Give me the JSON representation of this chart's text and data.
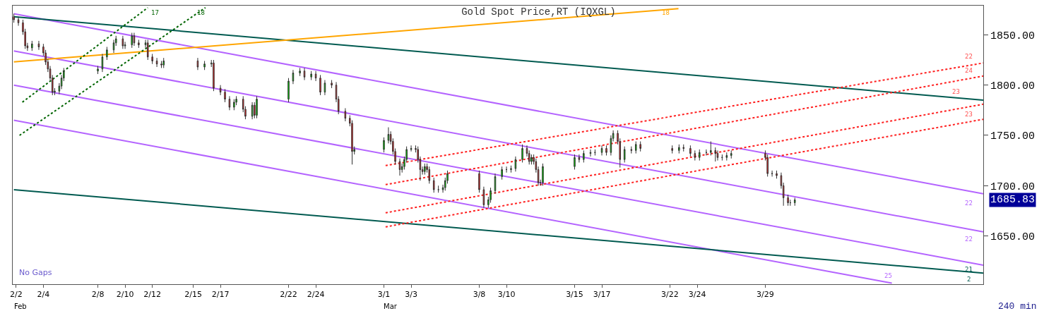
{
  "chart_data": {
    "type": "candlestick",
    "title": "Gold Spot Price,RT (IQXGL)",
    "x": [
      "--02-01T20:00",
      "--02-02T04:00",
      "--02-02T12:00",
      "--02-02T16:00",
      "--02-02T20:00",
      "--02-03T04:00",
      "--02-03T16:00",
      "--02-04T00:00",
      "--02-04T04:00",
      "--02-04T08:00",
      "--02-04T12:00",
      "--02-04T16:00",
      "--02-04T20:00",
      "--02-05T04:00",
      "--02-05T08:00",
      "--02-05T12:00",
      "--02-08T00:00",
      "--02-08T08:00",
      "--02-08T16:00",
      "--02-09T04:00",
      "--02-09T08:00",
      "--02-09T20:00",
      "--02-10T00:00",
      "--02-10T12:00",
      "--02-10T16:00",
      "--02-11T00:00",
      "--02-11T12:00",
      "--02-11T16:00",
      "--02-12T00:00",
      "--02-12T08:00",
      "--02-12T16:00",
      "--02-12T20:00",
      "--02-15T08:00",
      "--02-15T20:00",
      "--02-16T08:00",
      "--02-16T12:00",
      "--02-17T00:00",
      "--02-17T08:00",
      "--02-17T16:00",
      "--02-18T00:00",
      "--02-18T04:00",
      "--02-18T16:00",
      "--02-18T20:00",
      "--02-19T08:00",
      "--02-19T12:00",
      "--02-19T16:00",
      "--02-22T00:00",
      "--02-22T08:00",
      "--02-22T20:00",
      "--02-23T04:00",
      "--02-23T16:00",
      "--02-24T00:00",
      "--02-24T08:00",
      "--02-24T16:00",
      "--02-25T04:00",
      "--02-25T12:00",
      "--02-25T16:00",
      "--02-26T04:00",
      "--02-26T12:00",
      "--02-26T16:00",
      "--02-26T20:00",
      "--03-01T00:00",
      "--03-01T08:00",
      "--03-01T12:00",
      "--03-01T16:00",
      "--03-01T20:00",
      "--03-02T04:00",
      "--03-02T08:00",
      "--03-02T12:00",
      "--03-02T16:00",
      "--03-03T00:00",
      "--03-03T08:00",
      "--03-03T12:00",
      "--03-03T16:00",
      "--03-03T20:00",
      "--03-04T00:00",
      "--03-04T04:00",
      "--03-04T08:00",
      "--03-04T16:00",
      "--03-05T00:00",
      "--03-05T08:00",
      "--03-05T12:00",
      "--03-05T16:00",
      "--03-08T00:00",
      "--03-08T08:00",
      "--03-08T16:00",
      "--03-08T20:00",
      "--03-09T04:00",
      "--03-09T16:00",
      "--03-10T00:00",
      "--03-10T08:00",
      "--03-10T16:00",
      "--03-11T04:00",
      "--03-11T12:00",
      "--03-11T16:00",
      "--03-11T20:00",
      "--03-12T00:00",
      "--03-12T04:00",
      "--03-12T08:00",
      "--03-12T12:00",
      "--03-12T16:00",
      "--03-15T00:00",
      "--03-15T08:00",
      "--03-15T16:00",
      "--03-16T04:00",
      "--03-16T12:00",
      "--03-17T00:00",
      "--03-17T08:00",
      "--03-17T16:00",
      "--03-17T20:00",
      "--03-18T04:00",
      "--03-18T08:00",
      "--03-18T16:00",
      "--03-19T04:00",
      "--03-19T12:00",
      "--03-19T20:00",
      "--03-22T04:00",
      "--03-22T16:00",
      "--03-23T00:00",
      "--03-23T12:00",
      "--03-23T20:00",
      "--03-24T04:00",
      "--03-24T16:00",
      "--03-25T00:00",
      "--03-25T08:00",
      "--03-25T12:00",
      "--03-25T20:00",
      "--03-26T04:00",
      "--03-26T12:00",
      "--03-29T00:00",
      "--03-29T04:00",
      "--03-29T12:00",
      "--03-29T20:00",
      "--03-30T04:00",
      "--03-30T08:00",
      "--03-30T16:00",
      "--03-30T20:00",
      "--03-31T04:00"
    ],
    "ohlc": [
      [
        1868,
        1871,
        1862,
        1865
      ],
      [
        1865,
        1868,
        1859,
        1862
      ],
      [
        1862,
        1865,
        1850,
        1853
      ],
      [
        1853,
        1856,
        1836,
        1839
      ],
      [
        1839,
        1842,
        1834,
        1837
      ],
      [
        1837,
        1844,
        1834,
        1841
      ],
      [
        1841,
        1844,
        1835,
        1838
      ],
      [
        1838,
        1841,
        1829,
        1832
      ],
      [
        1832,
        1835,
        1820,
        1823
      ],
      [
        1823,
        1826,
        1813,
        1816
      ],
      [
        1816,
        1819,
        1804,
        1807
      ],
      [
        1807,
        1810,
        1790,
        1793
      ],
      [
        1793,
        1797,
        1790,
        1794
      ],
      [
        1794,
        1802,
        1791,
        1799
      ],
      [
        1799,
        1810,
        1796,
        1807
      ],
      [
        1807,
        1817,
        1804,
        1814
      ],
      [
        1814,
        1819,
        1811,
        1816
      ],
      [
        1816,
        1831,
        1813,
        1828
      ],
      [
        1828,
        1838,
        1825,
        1835
      ],
      [
        1835,
        1845,
        1832,
        1842
      ],
      [
        1842,
        1849,
        1839,
        1846
      ],
      [
        1846,
        1849,
        1836,
        1839
      ],
      [
        1839,
        1843,
        1836,
        1840
      ],
      [
        1840,
        1852,
        1837,
        1849
      ],
      [
        1849,
        1852,
        1839,
        1842
      ],
      [
        1842,
        1845,
        1837,
        1840
      ],
      [
        1840,
        1845,
        1837,
        1842
      ],
      [
        1842,
        1845,
        1825,
        1828
      ],
      [
        1828,
        1831,
        1821,
        1824
      ],
      [
        1824,
        1827,
        1818,
        1821
      ],
      [
        1821,
        1824,
        1817,
        1820
      ],
      [
        1820,
        1827,
        1817,
        1824
      ],
      [
        1824,
        1827,
        1815,
        1818
      ],
      [
        1818,
        1824,
        1815,
        1821
      ],
      [
        1821,
        1825,
        1818,
        1822
      ],
      [
        1822,
        1825,
        1794,
        1797
      ],
      [
        1797,
        1800,
        1790,
        1793
      ],
      [
        1793,
        1796,
        1783,
        1786
      ],
      [
        1786,
        1789,
        1775,
        1778
      ],
      [
        1778,
        1786,
        1775,
        1783
      ],
      [
        1783,
        1789,
        1780,
        1786
      ],
      [
        1786,
        1789,
        1773,
        1776
      ],
      [
        1776,
        1779,
        1766,
        1769
      ],
      [
        1769,
        1783,
        1766,
        1780
      ],
      [
        1780,
        1783,
        1767,
        1770
      ],
      [
        1770,
        1789,
        1767,
        1786
      ],
      [
        1786,
        1807,
        1783,
        1804
      ],
      [
        1804,
        1815,
        1801,
        1812
      ],
      [
        1812,
        1817,
        1809,
        1814
      ],
      [
        1814,
        1817,
        1805,
        1808
      ],
      [
        1808,
        1814,
        1805,
        1811
      ],
      [
        1811,
        1814,
        1804,
        1807
      ],
      [
        1807,
        1810,
        1790,
        1793
      ],
      [
        1793,
        1805,
        1790,
        1802
      ],
      [
        1802,
        1805,
        1797,
        1800
      ],
      [
        1800,
        1803,
        1783,
        1786
      ],
      [
        1786,
        1789,
        1771,
        1774
      ],
      [
        1774,
        1777,
        1764,
        1767
      ],
      [
        1767,
        1770,
        1759,
        1762
      ],
      [
        1762,
        1765,
        1721,
        1734
      ],
      [
        1734,
        1739,
        1731,
        1736
      ],
      [
        1736,
        1748,
        1733,
        1745
      ],
      [
        1745,
        1758,
        1742,
        1751
      ],
      [
        1751,
        1754,
        1741,
        1744
      ],
      [
        1744,
        1747,
        1731,
        1734
      ],
      [
        1734,
        1737,
        1721,
        1724
      ],
      [
        1724,
        1727,
        1710,
        1716
      ],
      [
        1716,
        1722,
        1713,
        1719
      ],
      [
        1719,
        1729,
        1716,
        1726
      ],
      [
        1726,
        1739,
        1723,
        1736
      ],
      [
        1736,
        1740,
        1734,
        1737
      ],
      [
        1737,
        1740,
        1733,
        1736
      ],
      [
        1736,
        1739,
        1723,
        1726
      ],
      [
        1726,
        1729,
        1705,
        1716
      ],
      [
        1716,
        1719,
        1711,
        1714
      ],
      [
        1714,
        1722,
        1711,
        1719
      ],
      [
        1719,
        1722,
        1713,
        1716
      ],
      [
        1716,
        1719,
        1702,
        1705
      ],
      [
        1705,
        1708,
        1693,
        1696
      ],
      [
        1696,
        1700,
        1693,
        1696
      ],
      [
        1696,
        1701,
        1693,
        1698
      ],
      [
        1698,
        1708,
        1695,
        1705
      ],
      [
        1705,
        1715,
        1702,
        1712
      ],
      [
        1712,
        1715,
        1693,
        1696
      ],
      [
        1696,
        1699,
        1678,
        1681
      ],
      [
        1681,
        1689,
        1678,
        1686
      ],
      [
        1686,
        1698,
        1683,
        1695
      ],
      [
        1695,
        1712,
        1692,
        1709
      ],
      [
        1709,
        1719,
        1706,
        1716
      ],
      [
        1716,
        1719,
        1713,
        1716
      ],
      [
        1716,
        1720,
        1713,
        1717
      ],
      [
        1717,
        1729,
        1714,
        1726
      ],
      [
        1726,
        1741,
        1723,
        1737
      ],
      [
        1737,
        1740,
        1729,
        1732
      ],
      [
        1732,
        1735,
        1721,
        1724
      ],
      [
        1724,
        1731,
        1721,
        1728
      ],
      [
        1728,
        1731,
        1721,
        1724
      ],
      [
        1724,
        1727,
        1713,
        1716
      ],
      [
        1716,
        1719,
        1700,
        1703
      ],
      [
        1703,
        1706,
        1700,
        1703
      ],
      [
        1703,
        1722,
        1700,
        1719
      ],
      [
        1719,
        1731,
        1716,
        1728
      ],
      [
        1728,
        1731,
        1723,
        1726
      ],
      [
        1726,
        1735,
        1723,
        1732
      ],
      [
        1732,
        1736,
        1729,
        1733
      ],
      [
        1733,
        1736,
        1730,
        1733
      ],
      [
        1733,
        1740,
        1730,
        1737
      ],
      [
        1737,
        1740,
        1730,
        1733
      ],
      [
        1733,
        1750,
        1730,
        1747
      ],
      [
        1747,
        1755,
        1744,
        1752
      ],
      [
        1752,
        1755,
        1741,
        1744
      ],
      [
        1744,
        1747,
        1718,
        1726
      ],
      [
        1726,
        1739,
        1723,
        1736
      ],
      [
        1736,
        1739,
        1732,
        1735
      ],
      [
        1735,
        1744,
        1732,
        1741
      ],
      [
        1741,
        1744,
        1734,
        1737
      ],
      [
        1737,
        1740,
        1732,
        1735
      ],
      [
        1735,
        1741,
        1732,
        1738
      ],
      [
        1738,
        1741,
        1734,
        1737
      ],
      [
        1737,
        1740,
        1729,
        1732
      ],
      [
        1732,
        1735,
        1725,
        1728
      ],
      [
        1728,
        1736,
        1725,
        1733
      ],
      [
        1733,
        1736,
        1730,
        1733
      ],
      [
        1733,
        1744,
        1730,
        1735
      ],
      [
        1735,
        1738,
        1724,
        1732
      ],
      [
        1732,
        1735,
        1725,
        1728
      ],
      [
        1728,
        1731,
        1725,
        1728
      ],
      [
        1728,
        1733,
        1725,
        1730
      ],
      [
        1730,
        1735,
        1727,
        1732
      ],
      [
        1732,
        1735,
        1725,
        1728
      ],
      [
        1728,
        1731,
        1709,
        1712
      ],
      [
        1712,
        1715,
        1709,
        1712
      ],
      [
        1712,
        1715,
        1707,
        1710
      ],
      [
        1710,
        1713,
        1697,
        1700
      ],
      [
        1700,
        1703,
        1680,
        1688
      ],
      [
        1688,
        1691,
        1680,
        1683
      ],
      [
        1683,
        1686,
        1680,
        1683
      ],
      [
        1683,
        1688,
        1680,
        1685.83
      ]
    ],
    "series": [
      {
        "type": "line",
        "x": [
          "--02-01T20:00",
          "--04-14T00:00"
        ],
        "values": [
          1871,
          1692
        ],
        "color": "#b464ff",
        "line_style": "solid"
      },
      {
        "type": "line",
        "x": [
          "--02-01T20:00",
          "--04-14T00:00"
        ],
        "values": [
          1834,
          1654
        ],
        "color": "#b464ff",
        "line_style": "solid"
      },
      {
        "type": "line",
        "x": [
          "--02-01T20:00",
          "--04-14T00:00"
        ],
        "values": [
          1800,
          1621
        ],
        "color": "#b464ff",
        "line_style": "solid"
      },
      {
        "type": "line",
        "x": [
          "--02-01T20:00",
          "--04-07T07:00"
        ],
        "values": [
          1765,
          1603
        ],
        "color": "#b464ff",
        "line_style": "solid"
      },
      {
        "type": "line",
        "x": [
          "--02-01T20:00",
          "--04-14T00:00"
        ],
        "values": [
          1868,
          1785
        ],
        "color": "#005a50",
        "line_style": "solid"
      },
      {
        "type": "line",
        "x": [
          "--02-01T20:00",
          "--04-14T00:00"
        ],
        "values": [
          1696,
          1613
        ],
        "color": "#005a50",
        "line_style": "solid"
      },
      {
        "type": "line",
        "x": [
          "--02-01T20:00",
          "--03-22T15:00"
        ],
        "values": [
          1823,
          1876
        ],
        "color": "#ffa500",
        "line_style": "solid"
      },
      {
        "type": "line",
        "x": [
          "--02-02T11:00",
          "--02-11T16:00"
        ],
        "values": [
          1783,
          1877
        ],
        "color": "#006400",
        "line_style": "dotted"
      },
      {
        "type": "line",
        "x": [
          "--02-02T06:00",
          "--02-15T21:30"
        ],
        "values": [
          1750,
          1877
        ],
        "color": "#006400",
        "line_style": "dotted"
      },
      {
        "type": "line",
        "x": [
          "--03-01T03:00",
          "--04-14T00:00"
        ],
        "values": [
          1720,
          1822
        ],
        "color": "#ff2020",
        "line_style": "dotted"
      },
      {
        "type": "line",
        "x": [
          "--03-01T03:00",
          "--04-14T00:00"
        ],
        "values": [
          1701,
          1809
        ],
        "color": "#ff2020",
        "line_style": "dotted"
      },
      {
        "type": "line",
        "x": [
          "--03-01T03:00",
          "--04-14T00:00"
        ],
        "values": [
          1673,
          1781
        ],
        "color": "#ff2020",
        "line_style": "dotted"
      },
      {
        "type": "line",
        "x": [
          "--03-01T03:00",
          "--04-14T00:00"
        ],
        "values": [
          1659,
          1766
        ],
        "color": "#ff2020",
        "line_style": "dotted"
      }
    ],
    "xlim": [
      "--02-01T18:00",
      "--04-14T00:00"
    ],
    "ylim": [
      1602,
      1879
    ],
    "xticks": [
      {
        "value": "--02-02",
        "label": "2/2"
      },
      {
        "value": "--02-04",
        "label": "2/4"
      },
      {
        "value": "--02-08",
        "label": "2/8"
      },
      {
        "value": "--02-10",
        "label": "2/10"
      },
      {
        "value": "--02-12",
        "label": "2/12"
      },
      {
        "value": "--02-15",
        "label": "2/15"
      },
      {
        "value": "--02-17",
        "label": "2/17"
      },
      {
        "value": "--02-22",
        "label": "2/22"
      },
      {
        "value": "--02-24",
        "label": "2/24"
      },
      {
        "value": "--03-01",
        "label": "3/1"
      },
      {
        "value": "--03-03",
        "label": "3/3"
      },
      {
        "value": "--03-08",
        "label": "3/8"
      },
      {
        "value": "--03-10",
        "label": "3/10"
      },
      {
        "value": "--03-15",
        "label": "3/15"
      },
      {
        "value": "--03-17",
        "label": "3/17"
      },
      {
        "value": "--03-22",
        "label": "3/22"
      },
      {
        "value": "--03-24",
        "label": "3/24"
      },
      {
        "value": "--03-29",
        "label": "3/29"
      }
    ],
    "yticks": [
      {
        "value": 1850,
        "label": "1850.00"
      },
      {
        "value": 1800,
        "label": "1800.00"
      },
      {
        "value": 1750,
        "label": "1750.00"
      },
      {
        "value": 1700,
        "label": "1700.00"
      },
      {
        "value": 1650,
        "label": "1650.00"
      }
    ],
    "annotations": [
      "No Gaps",
      "240 min",
      "Feb",
      "Mar",
      "1685.83",
      "17",
      "18",
      "18",
      "22",
      "24",
      "23",
      "23",
      "22",
      "22",
      "25",
      "21",
      "2"
    ]
  }
}
